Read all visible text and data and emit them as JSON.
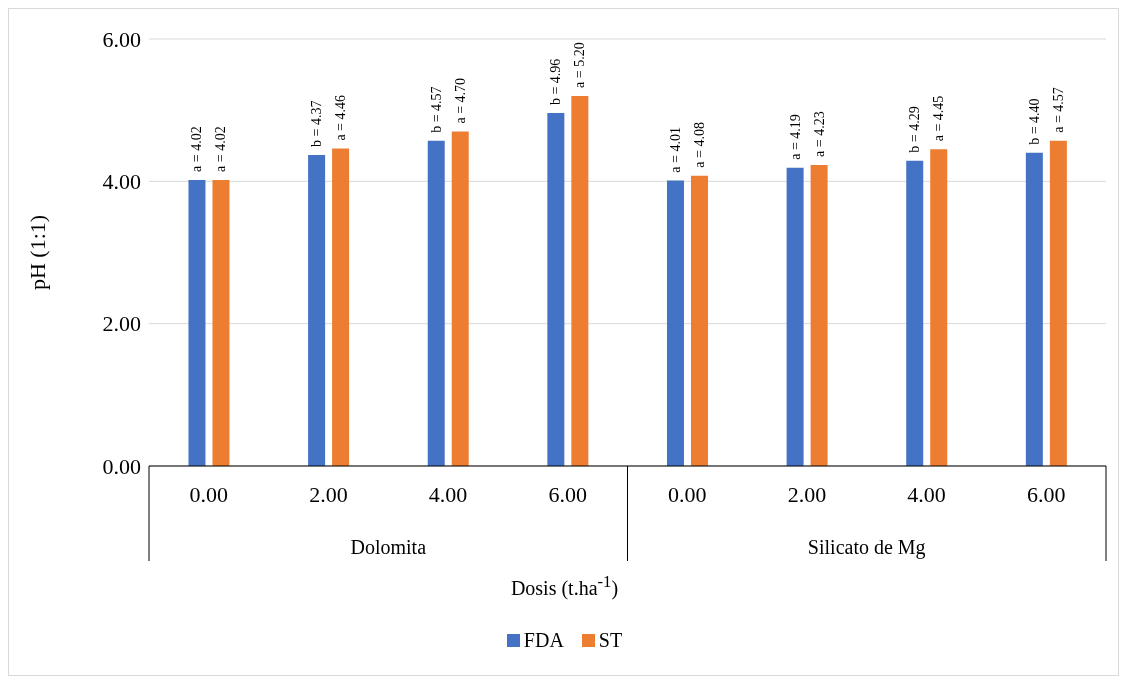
{
  "chart_data": {
    "type": "bar",
    "ylabel": "pH (1:1)",
    "xlabel": "Dosis (t.ha$^{-1}$)",
    "categories": [
      "0.00",
      "2.00",
      "4.00",
      "6.00",
      "0.00",
      "2.00",
      "4.00",
      "6.00"
    ],
    "annotations": [
      "Dolomita",
      "Silicato de Mg"
    ],
    "series": [
      {
        "name": "FDA",
        "color": "#4472c4",
        "values": [
          4.02,
          4.37,
          4.57,
          4.96,
          4.01,
          4.19,
          4.29,
          4.4
        ],
        "value_labels": [
          "a = 4.02",
          "b = 4.37",
          "b = 4.57",
          "b = 4.96",
          "a = 4.01",
          "a = 4.19",
          "b = 4.29",
          "b = 4.40"
        ]
      },
      {
        "name": "ST",
        "color": "#ed7d31",
        "values": [
          4.02,
          4.46,
          4.7,
          5.2,
          4.08,
          4.23,
          4.45,
          4.57
        ],
        "value_labels": [
          "a = 4.02",
          "a = 4.46",
          "a = 4.70",
          "a = 5.20",
          "a = 4.08",
          "a = 4.23",
          "a = 4.45",
          "a = 4.57"
        ]
      }
    ],
    "ylim": [
      0,
      6
    ],
    "yticks": [
      {
        "value": 0,
        "label": "0.00"
      },
      {
        "value": 2,
        "label": "2.00"
      },
      {
        "value": 4,
        "label": "4.00"
      },
      {
        "value": 6,
        "label": "6.00"
      }
    ],
    "grid": "y",
    "legend": "bottom"
  }
}
